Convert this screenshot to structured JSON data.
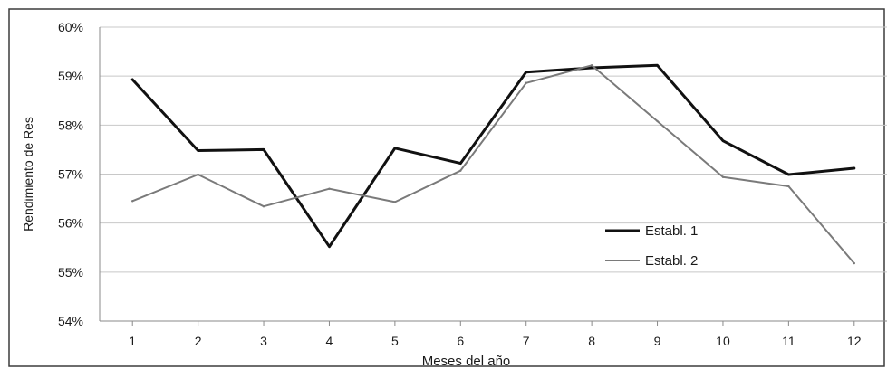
{
  "chart_data": {
    "type": "line",
    "title": "",
    "xlabel": "Meses del año",
    "ylabel": "Rendimiento de Res",
    "categories": [
      "1",
      "2",
      "3",
      "4",
      "5",
      "6",
      "7",
      "8",
      "9",
      "10",
      "11",
      "12"
    ],
    "y_ticks": [
      "54%",
      "55%",
      "56%",
      "57%",
      "58%",
      "59%",
      "60%"
    ],
    "ylim": [
      54,
      60
    ],
    "grid": true,
    "legend_position": "bottom-right",
    "series": [
      {
        "name": "Establ. 1",
        "color": "#111111",
        "values": [
          58.93,
          57.48,
          57.5,
          55.52,
          57.53,
          57.22,
          59.08,
          59.17,
          59.22,
          57.68,
          56.99,
          57.12
        ]
      },
      {
        "name": "Establ. 2",
        "color": "#7a7a7a",
        "values": [
          56.45,
          56.99,
          56.34,
          56.7,
          56.43,
          57.07,
          58.86,
          59.22,
          58.08,
          56.94,
          56.75,
          55.18
        ]
      }
    ]
  }
}
